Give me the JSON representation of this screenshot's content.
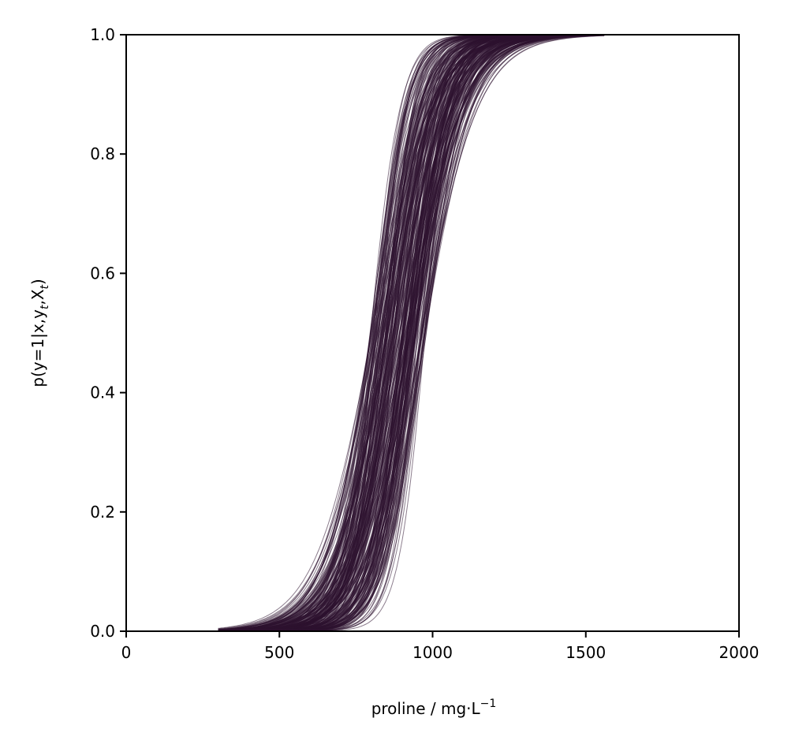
{
  "chart_data": {
    "type": "line",
    "title": "",
    "xlabel": "proline / mg·L",
    "xlabel_sup": "−1",
    "ylabel_parts": {
      "pre": "p(y=1|x,y",
      "sub1": "t",
      "mid": ",X",
      "sub2": "t",
      "post": ")"
    },
    "xlim": [
      0,
      2000
    ],
    "ylim": [
      0,
      1
    ],
    "xticks": [
      0,
      500,
      1000,
      1500,
      2000
    ],
    "xtick_labels": [
      "0",
      "500",
      "1000",
      "1500",
      "2000"
    ],
    "yticks": [
      0,
      0.2,
      0.4,
      0.6,
      0.8,
      1.0
    ],
    "ytick_labels": [
      "0.0",
      "0.2",
      "0.4",
      "0.6",
      "0.8",
      "1.0"
    ],
    "grid": false,
    "legend": "none",
    "line_color": "#2d1330",
    "curve_family": {
      "description_kind": "posterior logistic curves",
      "x_range": [
        300,
        1560
      ],
      "midpoint_range": [
        790,
        985
      ],
      "scale_range": [
        42,
        95
      ],
      "count": 260
    }
  }
}
